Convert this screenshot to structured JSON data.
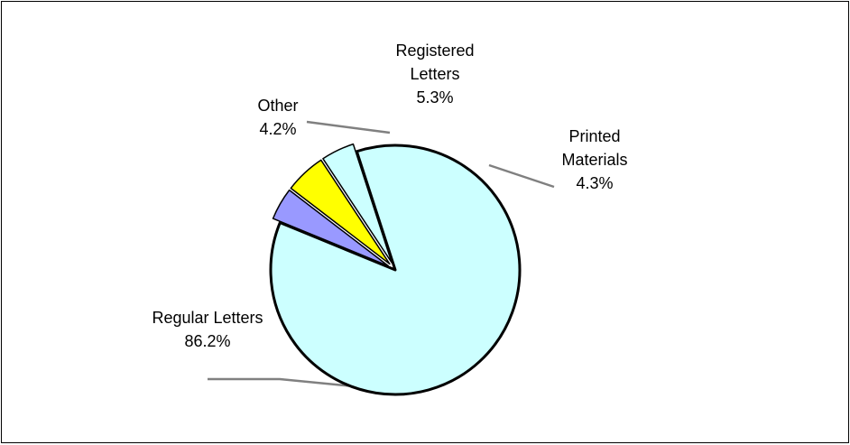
{
  "chart_data": {
    "type": "pie",
    "title": "",
    "slices": [
      {
        "label": "Regular Letters",
        "label_lines": [
          "Regular Letters"
        ],
        "value_label": "86.2%",
        "value": 86.2,
        "color": "#ccffff"
      },
      {
        "label": "Other",
        "label_lines": [
          "Other"
        ],
        "value_label": "4.2%",
        "value": 4.2,
        "color": "#9999ff"
      },
      {
        "label": "Registered Letters",
        "label_lines": [
          "Registered",
          "Letters"
        ],
        "value_label": "5.3%",
        "value": 5.3,
        "color": "#ffff00"
      },
      {
        "label": "Printed Materials",
        "label_lines": [
          "Printed",
          "Materials"
        ],
        "value_label": "4.3%",
        "value": 4.3,
        "color": "#ccffff"
      }
    ],
    "exploded": true,
    "legend": "none",
    "leader_line_color": "#808080"
  }
}
